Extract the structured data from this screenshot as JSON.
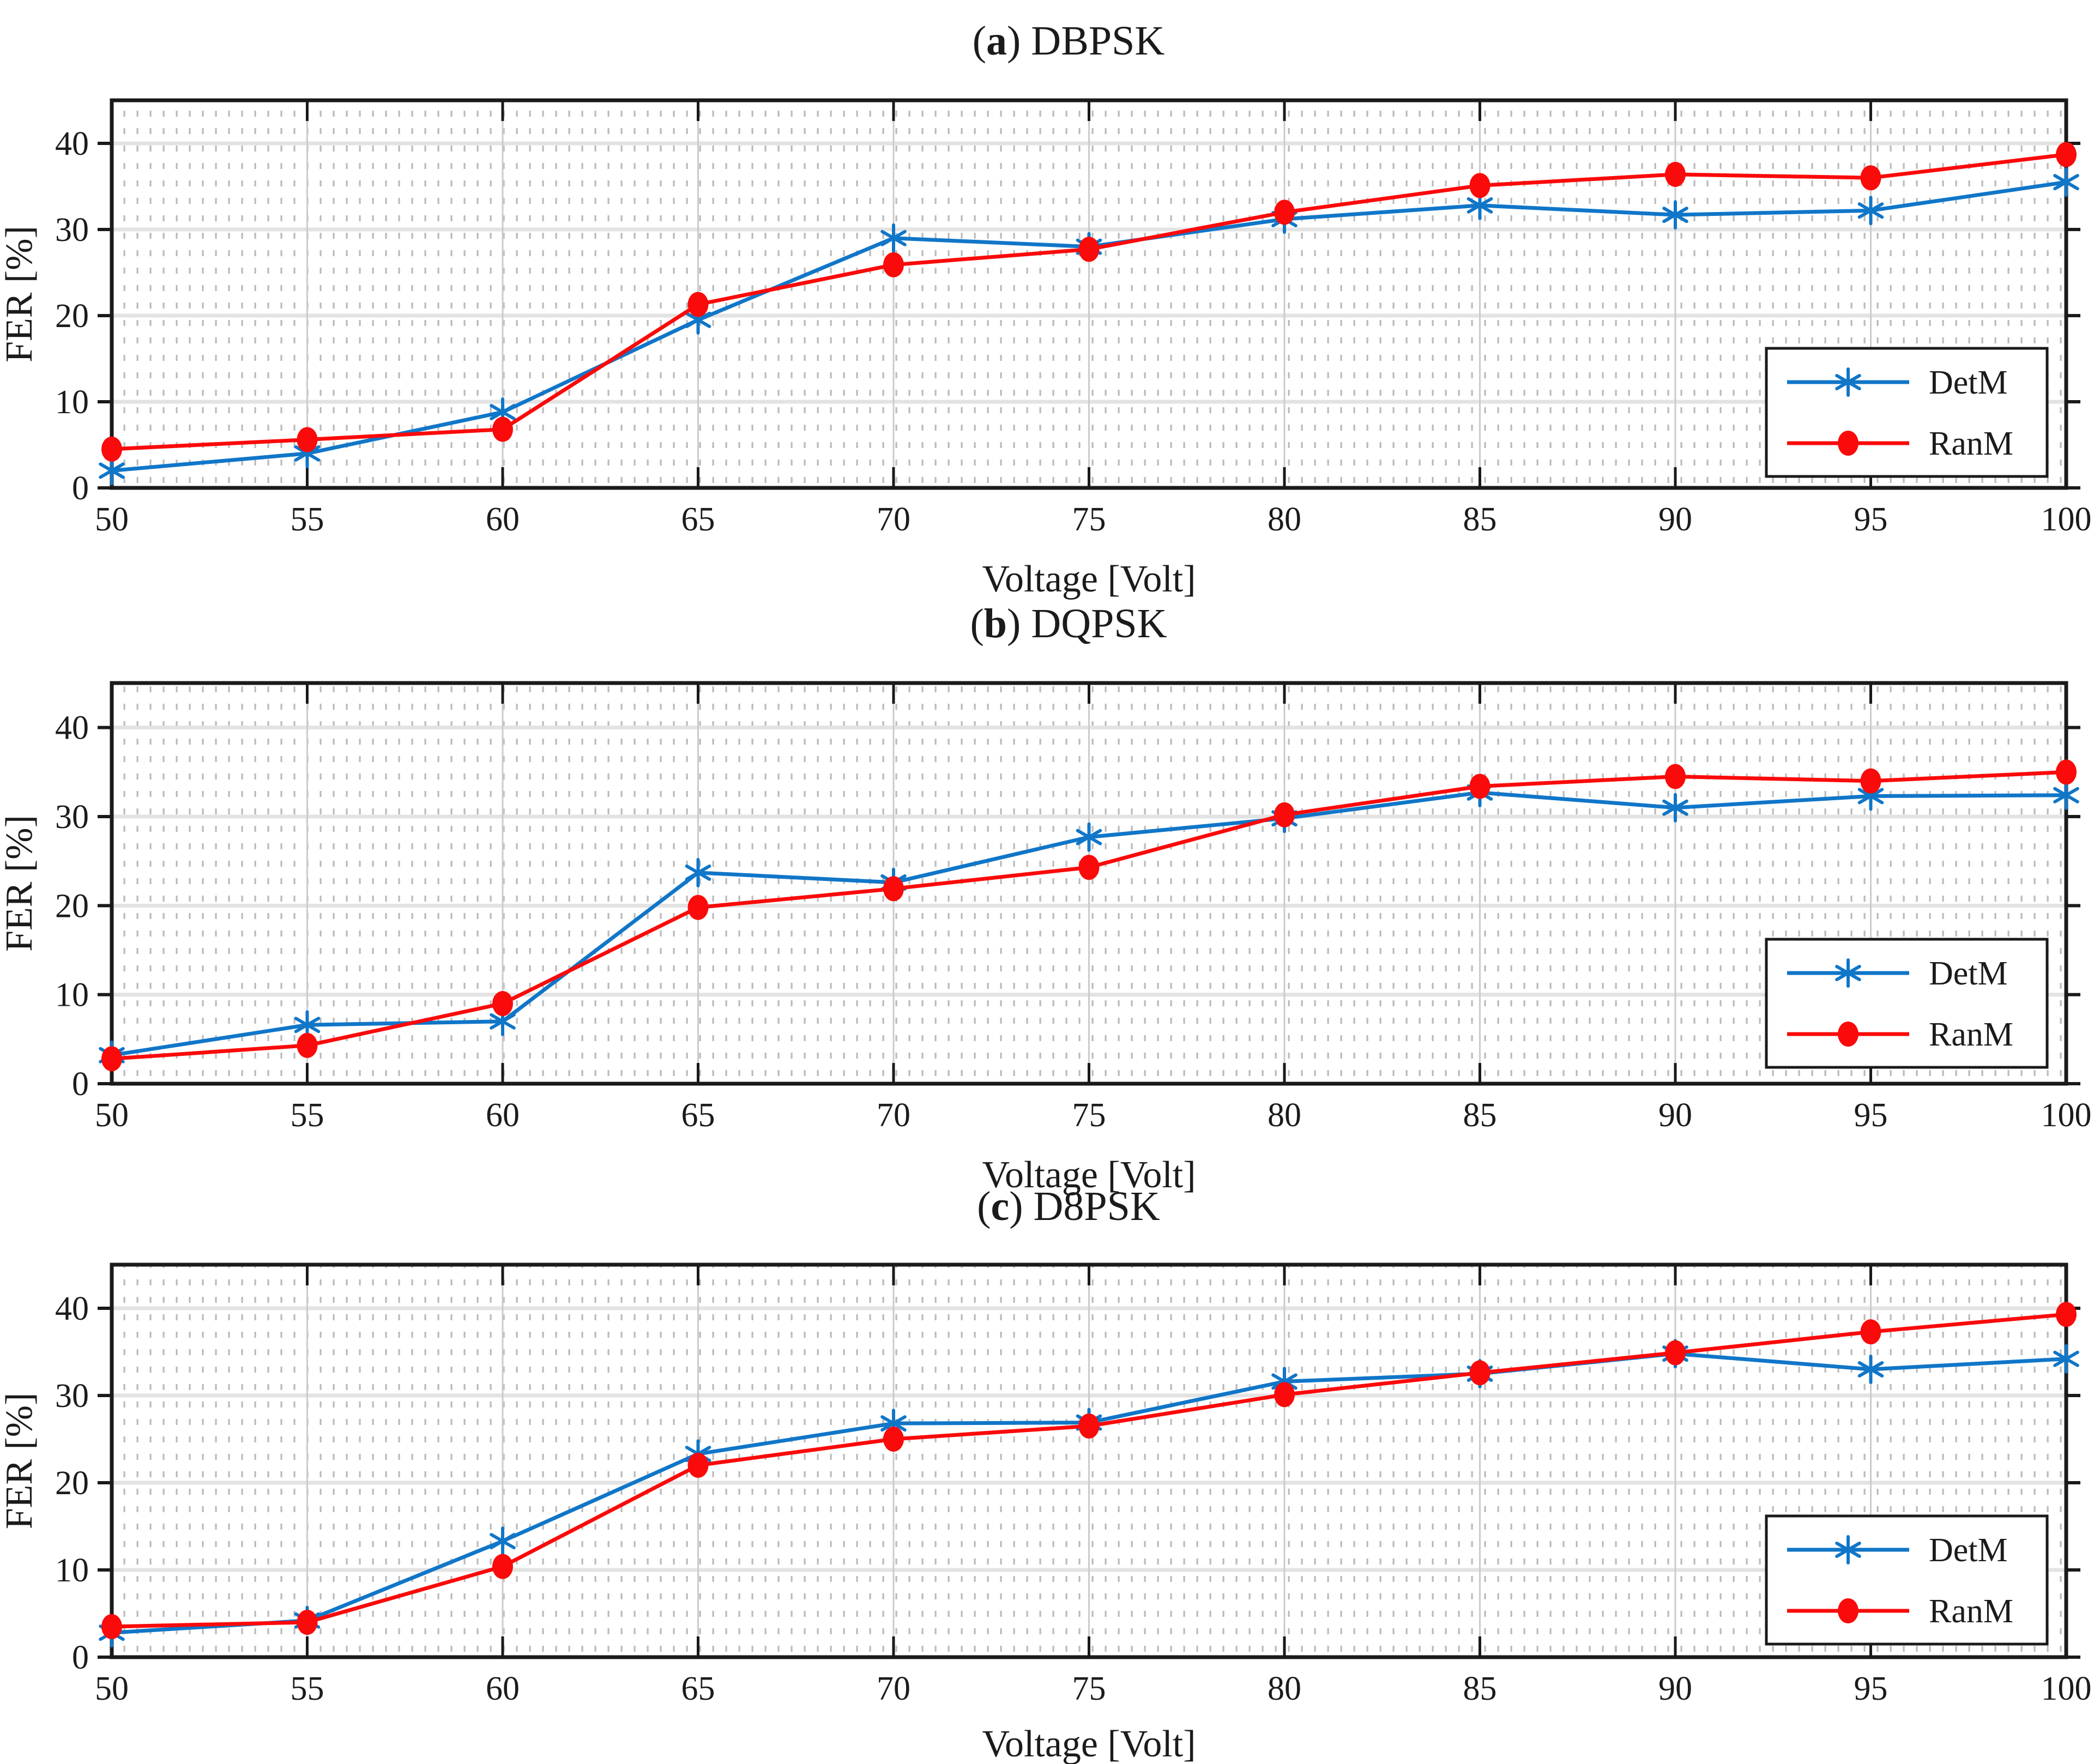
{
  "figure": {
    "background": "#ffffff",
    "series_colors": {
      "DetM": "#1076c8",
      "RanM": "#fa0a0a"
    },
    "grid_major_h_color": "#e3e3e3",
    "grid_major_v_color": "#cbcbcb",
    "grid_minor_color": "#aeaeae",
    "axis_color": "#1a1a1a",
    "text_color": "#1b1b1b"
  },
  "chart_data": [
    {
      "id": "a",
      "type": "line",
      "title_paren_letter": "a",
      "title_name": "DBPSK",
      "xlabel": "Voltage [Volt]",
      "ylabel": "FER [%]",
      "x": [
        50,
        55,
        60,
        65,
        70,
        75,
        80,
        85,
        90,
        95,
        100
      ],
      "xlim": [
        50,
        100
      ],
      "ylim": [
        0,
        45
      ],
      "yticks": [
        0,
        10,
        20,
        30,
        40
      ],
      "grid": "major+minor-dotted",
      "legend_position": "inside-right-lower",
      "legend_entries": [
        "DetM",
        "RanM"
      ],
      "series": [
        {
          "name": "DetM",
          "color": "#1076c8",
          "marker": "asterisk",
          "values": [
            2.0,
            4.0,
            8.8,
            19.5,
            29.0,
            28.0,
            31.2,
            32.8,
            31.7,
            32.2,
            35.5
          ]
        },
        {
          "name": "RanM",
          "color": "#fa0a0a",
          "marker": "circle",
          "values": [
            4.5,
            5.6,
            6.8,
            21.3,
            25.9,
            27.7,
            32.0,
            35.1,
            36.4,
            36.0,
            38.7
          ]
        }
      ]
    },
    {
      "id": "b",
      "type": "line",
      "title_paren_letter": "b",
      "title_name": "DQPSK",
      "xlabel": "Voltage [Volt]",
      "ylabel": "FER [%]",
      "x": [
        50,
        55,
        60,
        65,
        70,
        75,
        80,
        85,
        90,
        95,
        100
      ],
      "xlim": [
        50,
        100
      ],
      "ylim": [
        0,
        45
      ],
      "yticks": [
        0,
        10,
        20,
        30,
        40
      ],
      "grid": "major+minor-dotted",
      "legend_position": "inside-right-lower",
      "legend_entries": [
        "DetM",
        "RanM"
      ],
      "series": [
        {
          "name": "DetM",
          "color": "#1076c8",
          "marker": "asterisk",
          "values": [
            3.2,
            6.6,
            7.0,
            23.7,
            22.6,
            27.7,
            29.8,
            32.7,
            31.0,
            32.3,
            32.4
          ]
        },
        {
          "name": "RanM",
          "color": "#fa0a0a",
          "marker": "circle",
          "values": [
            2.8,
            4.3,
            9.0,
            19.8,
            21.9,
            24.3,
            30.2,
            33.4,
            34.5,
            34.0,
            35.0
          ]
        }
      ]
    },
    {
      "id": "c",
      "type": "line",
      "title_paren_letter": "c",
      "title_name": "D8PSK",
      "xlabel": "Voltage [Volt]",
      "ylabel": "FER [%]",
      "x": [
        50,
        55,
        60,
        65,
        70,
        75,
        80,
        85,
        90,
        95,
        100
      ],
      "xlim": [
        50,
        100
      ],
      "ylim": [
        0,
        45
      ],
      "yticks": [
        0,
        10,
        20,
        30,
        40
      ],
      "grid": "major+minor-dotted",
      "legend_position": "inside-right-lower",
      "legend_entries": [
        "DetM",
        "RanM"
      ],
      "series": [
        {
          "name": "DetM",
          "color": "#1076c8",
          "marker": "asterisk",
          "values": [
            2.8,
            4.2,
            13.3,
            23.3,
            26.8,
            26.9,
            31.6,
            32.5,
            34.8,
            33.0,
            34.2
          ]
        },
        {
          "name": "RanM",
          "color": "#fa0a0a",
          "marker": "circle",
          "values": [
            3.5,
            4.0,
            10.4,
            22.0,
            25.0,
            26.5,
            30.1,
            32.6,
            34.9,
            37.3,
            39.3
          ]
        }
      ]
    }
  ]
}
